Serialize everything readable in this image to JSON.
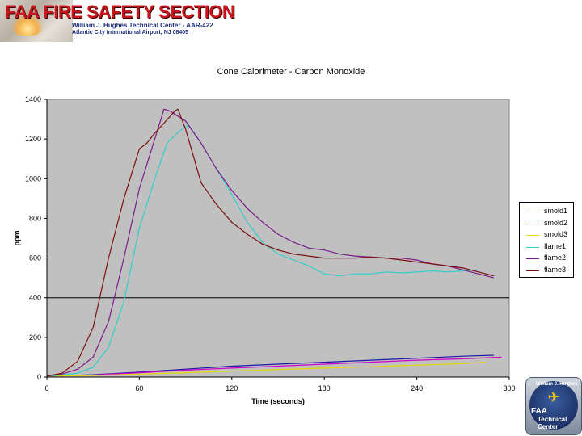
{
  "header": {
    "title": "FAA FIRE SAFETY SECTION",
    "line1": "William J. Hughes Technical Center  -  AAR-422",
    "line2": "Atlantic City International Airport, NJ 08405"
  },
  "badge": {
    "arc_text": "William J. Hughes",
    "faa": "FAA",
    "line1": "Technical",
    "line2": "Center"
  },
  "colors": {
    "plot_bg": "#c0c0c0",
    "smold1": "#1a1aa8",
    "smold2": "#cc00cc",
    "smold3": "#e6d800",
    "flame1": "#33cccc",
    "flame2": "#7a1a8a",
    "flame3": "#7a1010"
  },
  "chart_data": {
    "type": "line",
    "title": "Cone Calorimeter - Carbon Monoxide",
    "xlabel": "Time (seconds)",
    "ylabel": "ppm",
    "xlim": [
      0,
      300
    ],
    "ylim": [
      0,
      1400
    ],
    "x_ticks": [
      "0",
      "60",
      "120",
      "180",
      "240",
      "300"
    ],
    "y_ticks": [
      "0",
      "200",
      "400",
      "600",
      "800",
      "1000",
      "1200",
      "1400"
    ],
    "reference_line": 400,
    "legend": "right",
    "series": [
      {
        "name": "smold1",
        "color": "#1a1aa8",
        "x": [
          0,
          30,
          60,
          90,
          120,
          150,
          180,
          210,
          240,
          270,
          290
        ],
        "y": [
          5,
          12,
          25,
          40,
          55,
          65,
          75,
          85,
          95,
          105,
          110
        ]
      },
      {
        "name": "smold2",
        "color": "#cc00cc",
        "x": [
          0,
          30,
          60,
          90,
          120,
          150,
          180,
          210,
          240,
          270,
          295
        ],
        "y": [
          5,
          10,
          22,
          35,
          45,
          55,
          65,
          75,
          85,
          92,
          100
        ]
      },
      {
        "name": "smold3",
        "color": "#e6d800",
        "x": [
          0,
          30,
          60,
          90,
          120,
          150,
          180,
          210,
          240,
          270,
          285
        ],
        "y": [
          5,
          8,
          15,
          22,
          30,
          38,
          45,
          52,
          60,
          68,
          75
        ]
      },
      {
        "name": "flame1",
        "color": "#33cccc",
        "x": [
          0,
          10,
          20,
          30,
          40,
          50,
          60,
          70,
          78,
          86,
          92,
          100,
          110,
          120,
          130,
          140,
          150,
          160,
          170,
          175,
          180,
          190,
          200,
          210,
          220,
          230,
          240,
          250,
          260,
          270,
          280
        ],
        "y": [
          5,
          10,
          20,
          50,
          150,
          380,
          750,
          1000,
          1180,
          1240,
          1270,
          1180,
          1050,
          920,
          780,
          680,
          620,
          590,
          560,
          540,
          520,
          510,
          520,
          520,
          530,
          525,
          530,
          535,
          530,
          535,
          540
        ]
      },
      {
        "name": "flame2",
        "color": "#7a1a8a",
        "x": [
          0,
          10,
          20,
          30,
          40,
          50,
          60,
          70,
          76,
          80,
          90,
          100,
          110,
          120,
          130,
          140,
          150,
          160,
          170,
          180,
          190,
          200,
          210,
          220,
          230,
          240,
          250,
          260,
          270,
          280,
          290
        ],
        "y": [
          5,
          15,
          40,
          100,
          280,
          600,
          950,
          1200,
          1350,
          1340,
          1290,
          1180,
          1050,
          940,
          850,
          780,
          720,
          680,
          650,
          640,
          620,
          610,
          605,
          600,
          600,
          590,
          570,
          560,
          540,
          520,
          500
        ]
      },
      {
        "name": "flame3",
        "color": "#7a1010",
        "x": [
          0,
          10,
          20,
          30,
          40,
          50,
          60,
          65,
          70,
          76,
          83,
          85,
          90,
          100,
          110,
          120,
          130,
          140,
          150,
          160,
          170,
          180,
          190,
          200,
          210,
          220,
          230,
          240,
          250,
          260,
          270,
          280,
          290
        ],
        "y": [
          5,
          20,
          80,
          250,
          600,
          900,
          1150,
          1180,
          1230,
          1280,
          1340,
          1350,
          1250,
          980,
          870,
          780,
          720,
          670,
          640,
          620,
          610,
          600,
          600,
          600,
          605,
          600,
          590,
          580,
          570,
          560,
          550,
          530,
          510
        ]
      }
    ]
  }
}
